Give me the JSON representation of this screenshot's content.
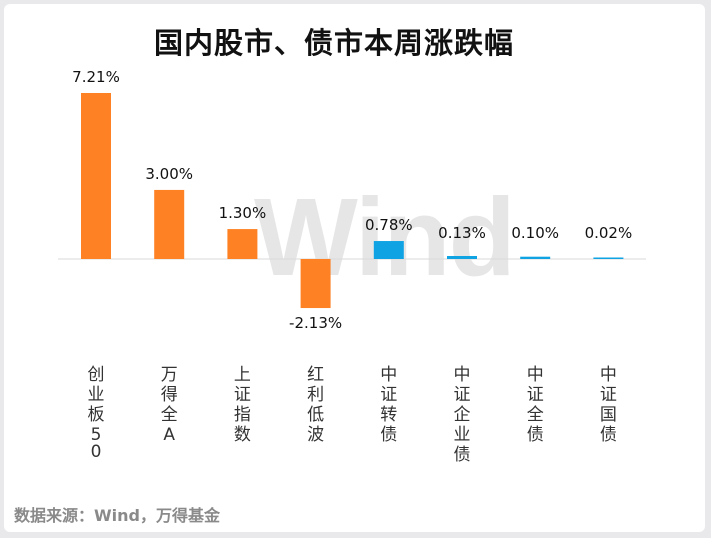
{
  "title": "国内股市、债市本周涨跌幅",
  "watermark": "Wind",
  "source": "数据来源：Wind，万得基金",
  "colors": {
    "equity": "#fe8224",
    "bond": "#0fa3e3",
    "axis": "#d9d9d9",
    "label": "#111111",
    "category": "#333333"
  },
  "chart_data": {
    "type": "bar",
    "title": "国内股市、债市本周涨跌幅",
    "unit": "%",
    "categories": [
      "创业板50",
      "万得全A",
      "上证指数",
      "红利低波",
      "中证转债",
      "中证企业债",
      "中证全债",
      "中证国债"
    ],
    "values": [
      7.21,
      3.0,
      1.3,
      -2.13,
      0.78,
      0.13,
      0.1,
      0.02
    ],
    "value_labels": [
      "7.21%",
      "3.00%",
      "1.30%",
      "-2.13%",
      "0.78%",
      "0.13%",
      "0.10%",
      "0.02%"
    ],
    "groups": [
      "equity",
      "equity",
      "equity",
      "equity",
      "bond",
      "bond",
      "bond",
      "bond"
    ],
    "ylim": [
      -2.13,
      7.21
    ],
    "grid": false,
    "legend": "none"
  }
}
